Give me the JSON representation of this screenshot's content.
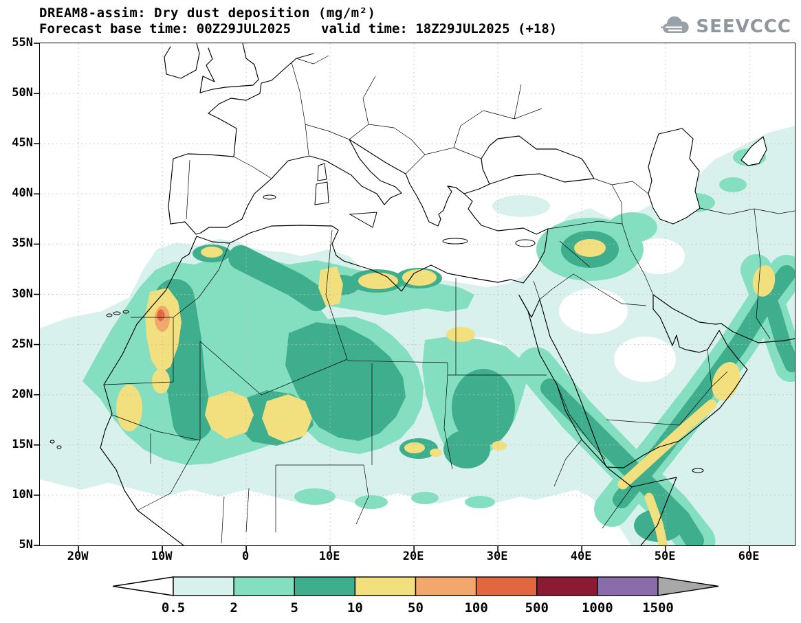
{
  "header": {
    "title": "DREAM8-assim: Dry dust deposition (mg/m²)",
    "forecast_base": "Forecast base time: 00Z29JUL2025",
    "valid_time": "valid time: 18Z29JUL2025 (+18)",
    "logo_text": "SEEVCCC"
  },
  "map": {
    "y_ticks": [
      "55N",
      "50N",
      "45N",
      "40N",
      "35N",
      "30N",
      "25N",
      "20N",
      "15N",
      "10N",
      "5N"
    ],
    "x_ticks": [
      "20W",
      "10W",
      "0",
      "10E",
      "20E",
      "30E",
      "40E",
      "50E",
      "60E"
    ]
  },
  "colorbar": {
    "levels": [
      "0.5",
      "2",
      "5",
      "10",
      "50",
      "100",
      "500",
      "1000",
      "1500"
    ],
    "colors": [
      "#ffffff",
      "#d9f1ec",
      "#84dfc1",
      "#3fae8d",
      "#f2df7d",
      "#f2a76d",
      "#e2663f",
      "#8c1a33",
      "#8a6cab",
      "#a8a8a8"
    ]
  }
}
